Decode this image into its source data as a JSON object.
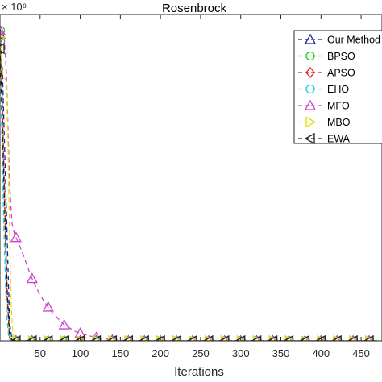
{
  "chart_data": {
    "type": "line",
    "title": "Rosenbrock",
    "xlabel": "Iterations",
    "ylabel": "",
    "y_exponent": "× 10⁸",
    "xlim": [
      0,
      470
    ],
    "ylim": [
      0,
      8.7
    ],
    "x_ticks": [
      "50",
      "100",
      "150",
      "200",
      "250",
      "300",
      "350",
      "400",
      "450"
    ],
    "grid": false,
    "legend_position": "top-right",
    "series": [
      {
        "name": "Our Method",
        "color": "#1f1f9e",
        "marker": "triangle-up",
        "dash": "6,4",
        "points": [
          [
            0,
            8.6
          ],
          [
            3,
            7.6
          ],
          [
            6,
            5.2
          ],
          [
            9,
            2.8
          ],
          [
            12,
            0.5
          ],
          [
            15,
            0.05
          ],
          [
            20,
            0
          ],
          [
            470,
            0
          ]
        ]
      },
      {
        "name": "BPSO",
        "color": "#22cc22",
        "marker": "circle",
        "dash": "6,4",
        "points": [
          [
            0,
            8.7
          ],
          [
            2,
            7.5
          ],
          [
            5,
            4.5
          ],
          [
            8,
            1.5
          ],
          [
            12,
            0.1
          ],
          [
            20,
            0
          ],
          [
            470,
            0
          ]
        ]
      },
      {
        "name": "APSO",
        "color": "#dd2222",
        "marker": "diamond",
        "dash": "6,4",
        "points": [
          [
            0,
            8.5
          ],
          [
            3,
            6.6
          ],
          [
            6,
            3.8
          ],
          [
            9,
            1.2
          ],
          [
            12,
            0.1
          ],
          [
            20,
            0
          ],
          [
            470,
            0
          ]
        ]
      },
      {
        "name": "EHO",
        "color": "#22cccc",
        "marker": "circle",
        "dash": "6,4",
        "points": [
          [
            0,
            8.4
          ],
          [
            2,
            6.0
          ],
          [
            5,
            3.0
          ],
          [
            8,
            0.8
          ],
          [
            11,
            0.05
          ],
          [
            20,
            0
          ],
          [
            470,
            0
          ]
        ]
      },
      {
        "name": "MFO",
        "color": "#cc44cc",
        "marker": "triangle-up",
        "dash": "6,4",
        "points": [
          [
            0,
            8.7
          ],
          [
            5,
            8.6
          ],
          [
            8,
            7.5
          ],
          [
            12,
            4.4
          ],
          [
            15,
            3.3
          ],
          [
            18,
            3.0
          ],
          [
            22,
            2.8
          ],
          [
            30,
            2.35
          ],
          [
            38,
            1.85
          ],
          [
            45,
            1.5
          ],
          [
            55,
            1.1
          ],
          [
            65,
            0.8
          ],
          [
            80,
            0.45
          ],
          [
            95,
            0.25
          ],
          [
            110,
            0.15
          ],
          [
            125,
            0.07
          ],
          [
            140,
            0.03
          ],
          [
            160,
            0.01
          ],
          [
            180,
            0
          ],
          [
            470,
            0
          ]
        ]
      },
      {
        "name": "MBO",
        "color": "#dddd11",
        "marker": "triangle-right",
        "dash": "6,4",
        "points": [
          [
            0,
            8.5
          ],
          [
            2,
            7.8
          ],
          [
            4,
            7.4
          ],
          [
            8,
            7.3
          ],
          [
            10,
            5.5
          ],
          [
            12,
            3.0
          ],
          [
            14,
            1.0
          ],
          [
            16,
            0.2
          ],
          [
            20,
            0
          ],
          [
            470,
            0
          ]
        ]
      },
      {
        "name": "EWA",
        "color": "#222222",
        "marker": "triangle-left",
        "dash": "6,4",
        "points": [
          [
            0,
            8.2
          ],
          [
            3,
            6.0
          ],
          [
            6,
            3.5
          ],
          [
            9,
            1.4
          ],
          [
            12,
            0.15
          ],
          [
            15,
            0.02
          ],
          [
            20,
            0
          ],
          [
            470,
            0
          ]
        ]
      }
    ]
  }
}
